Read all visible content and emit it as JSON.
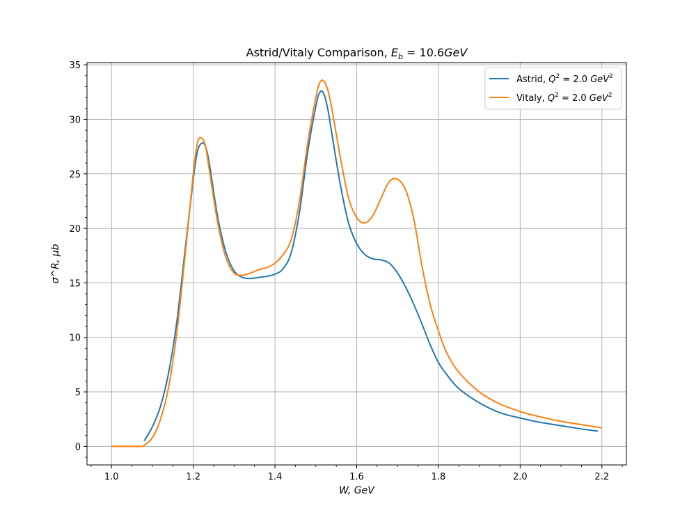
{
  "chart_data": {
    "type": "line",
    "title": "Astrid/Vitaly Comparison, E_b = 10.6GeV",
    "title_parts": {
      "prefix": "Astrid/Vitaly Comparison, ",
      "sym": "E",
      "sub": "b",
      "suffix": " = 10.6",
      "unit": "GeV"
    },
    "xlabel": "W, GeV",
    "ylabel": "σ^R, μb",
    "xlim": [
      0.94,
      2.26
    ],
    "ylim": [
      -1.7,
      35.2
    ],
    "xticks": [
      1.0,
      1.2,
      1.4,
      1.6,
      1.8,
      2.0,
      2.2
    ],
    "xtick_labels": [
      "1.0",
      "1.2",
      "1.4",
      "1.6",
      "1.8",
      "2.0",
      "2.2"
    ],
    "yticks": [
      0,
      5,
      10,
      15,
      20,
      25,
      30,
      35
    ],
    "ytick_labels": [
      "0",
      "5",
      "10",
      "15",
      "20",
      "25",
      "30",
      "35"
    ],
    "grid": true,
    "legend_position": "top-right",
    "series": [
      {
        "name": "Astrid, Q² = 2.0 GeV²",
        "legend_label": {
          "prefix": "Astrid, ",
          "sym": "Q",
          "sup": "2",
          "mid": " = 2.0 ",
          "unit": "GeV",
          "unit_sup": "2"
        },
        "color": "#1f77b4",
        "x": [
          1.08,
          1.1,
          1.12,
          1.14,
          1.16,
          1.18,
          1.2,
          1.21,
          1.22,
          1.23,
          1.24,
          1.26,
          1.28,
          1.3,
          1.32,
          1.34,
          1.36,
          1.38,
          1.4,
          1.42,
          1.44,
          1.46,
          1.48,
          1.5,
          1.51,
          1.52,
          1.53,
          1.54,
          1.56,
          1.58,
          1.6,
          1.62,
          1.64,
          1.66,
          1.68,
          1.7,
          1.72,
          1.74,
          1.76,
          1.78,
          1.8,
          1.82,
          1.85,
          1.9,
          1.95,
          2.0,
          2.05,
          2.1,
          2.15,
          2.19
        ],
        "y": [
          0.5,
          1.8,
          3.7,
          6.8,
          11.5,
          18.0,
          24.5,
          27.0,
          27.8,
          27.5,
          25.8,
          21.0,
          17.8,
          16.1,
          15.5,
          15.4,
          15.5,
          15.6,
          15.8,
          16.3,
          17.8,
          21.5,
          27.0,
          31.2,
          32.5,
          32.3,
          30.8,
          28.5,
          24.0,
          20.5,
          18.6,
          17.6,
          17.2,
          17.1,
          16.8,
          15.9,
          14.6,
          13.0,
          11.2,
          9.3,
          7.7,
          6.6,
          5.3,
          4.0,
          3.1,
          2.6,
          2.2,
          1.9,
          1.6,
          1.4
        ]
      },
      {
        "name": "Vitaly, Q² = 2.0 GeV²",
        "legend_label": {
          "prefix": "Vitaly, ",
          "sym": "Q",
          "sup": "2",
          "mid": " = 2.0 ",
          "unit": "GeV",
          "unit_sup": "2"
        },
        "color": "#ff7f0e",
        "x": [
          1.0,
          1.04,
          1.07,
          1.08,
          1.1,
          1.12,
          1.14,
          1.16,
          1.18,
          1.2,
          1.21,
          1.22,
          1.23,
          1.24,
          1.26,
          1.28,
          1.3,
          1.32,
          1.34,
          1.36,
          1.38,
          1.4,
          1.42,
          1.44,
          1.46,
          1.48,
          1.5,
          1.51,
          1.52,
          1.53,
          1.54,
          1.56,
          1.58,
          1.6,
          1.62,
          1.64,
          1.66,
          1.68,
          1.7,
          1.72,
          1.74,
          1.76,
          1.78,
          1.8,
          1.82,
          1.85,
          1.9,
          1.95,
          2.0,
          2.05,
          2.1,
          2.15,
          2.2
        ],
        "y": [
          0.0,
          0.0,
          0.0,
          0.1,
          0.8,
          2.5,
          5.5,
          10.5,
          17.5,
          25.0,
          27.8,
          28.3,
          27.5,
          25.2,
          20.5,
          17.3,
          15.9,
          15.7,
          15.9,
          16.2,
          16.4,
          16.8,
          17.6,
          19.0,
          22.5,
          27.8,
          32.0,
          33.4,
          33.5,
          32.6,
          30.8,
          26.5,
          22.8,
          21.0,
          20.5,
          21.2,
          22.8,
          24.3,
          24.5,
          23.5,
          20.8,
          16.5,
          13.0,
          10.6,
          8.6,
          6.8,
          5.0,
          3.9,
          3.2,
          2.7,
          2.3,
          2.0,
          1.7
        ]
      }
    ]
  }
}
